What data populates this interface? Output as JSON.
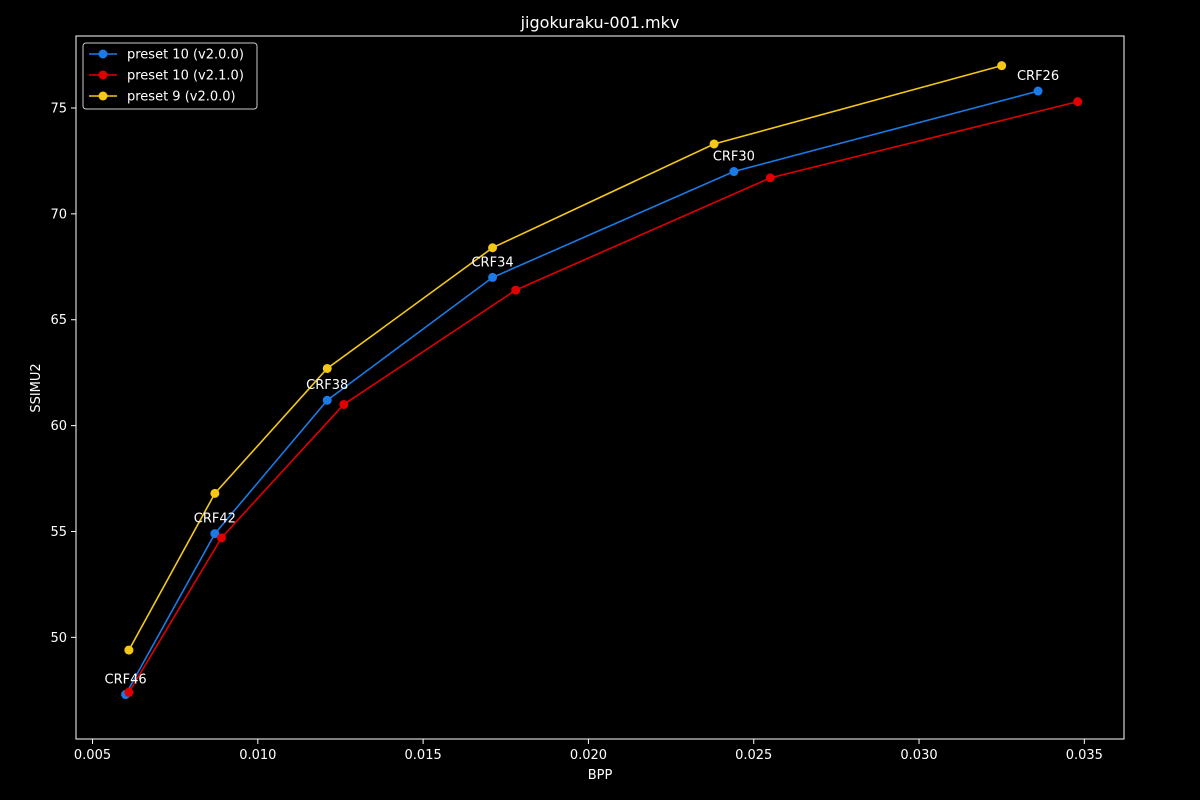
{
  "chart_data": {
    "type": "line",
    "title": "jigokuraku-001.mkv",
    "xlabel": "BPP",
    "ylabel": "SSIMU2",
    "xlim": [
      0.0045,
      0.0362
    ],
    "ylim": [
      45.2,
      78.4
    ],
    "xticks": [
      "0.005",
      "0.010",
      "0.015",
      "0.020",
      "0.025",
      "0.030",
      "0.035"
    ],
    "yticks": [
      "50",
      "55",
      "60",
      "65",
      "70",
      "75"
    ],
    "grid": false,
    "legend_position": "top-left",
    "series": [
      {
        "name": "preset 10 (v2.0.0)",
        "color": "#1a7be6",
        "points": [
          [
            0.006,
            47.3
          ],
          [
            0.0087,
            54.9
          ],
          [
            0.0121,
            61.2
          ],
          [
            0.0171,
            67.0
          ],
          [
            0.0244,
            72.0
          ],
          [
            0.0336,
            75.8
          ]
        ]
      },
      {
        "name": "preset 10 (v2.1.0)",
        "color": "#e00000",
        "points": [
          [
            0.0061,
            47.4
          ],
          [
            0.0089,
            54.7
          ],
          [
            0.0126,
            61.0
          ],
          [
            0.0178,
            66.4
          ],
          [
            0.0255,
            71.7
          ],
          [
            0.0348,
            75.3
          ]
        ]
      },
      {
        "name": "preset 9 (v2.0.0)",
        "color": "#f5c816",
        "points": [
          [
            0.0061,
            49.4
          ],
          [
            0.0087,
            56.8
          ],
          [
            0.0121,
            62.7
          ],
          [
            0.0171,
            68.4
          ],
          [
            0.0238,
            73.3
          ],
          [
            0.0325,
            77.0
          ]
        ]
      }
    ],
    "annotations": [
      {
        "text": "CRF46",
        "x": 0.006,
        "y": 47.3
      },
      {
        "text": "CRF42",
        "x": 0.0087,
        "y": 54.9
      },
      {
        "text": "CRF38",
        "x": 0.0121,
        "y": 61.2
      },
      {
        "text": "CRF34",
        "x": 0.0171,
        "y": 67.0
      },
      {
        "text": "CRF30",
        "x": 0.0244,
        "y": 72.0
      },
      {
        "text": "CRF26",
        "x": 0.0336,
        "y": 75.8
      }
    ]
  }
}
